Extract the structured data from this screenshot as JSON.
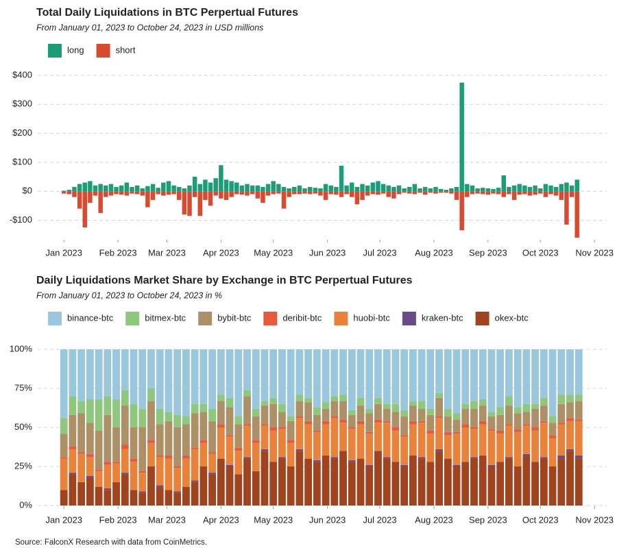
{
  "chart_data": [
    {
      "type": "bar",
      "title": "Total Daily Liquidations in BTC Perpertual Futures",
      "subtitle": "From January 01, 2023 to October 24, 2023 in USD millions",
      "x": [
        0,
        3,
        6,
        9,
        12,
        15,
        18,
        21,
        24,
        27,
        30,
        33,
        36,
        39,
        42,
        45,
        48,
        51,
        54,
        57,
        60,
        63,
        66,
        69,
        72,
        75,
        78,
        81,
        84,
        87,
        90,
        93,
        96,
        99,
        102,
        105,
        108,
        111,
        114,
        117,
        120,
        123,
        126,
        129,
        132,
        135,
        138,
        141,
        144,
        147,
        150,
        153,
        156,
        159,
        162,
        165,
        168,
        171,
        174,
        177,
        180,
        183,
        186,
        189,
        192,
        195,
        198,
        201,
        204,
        207,
        210,
        213,
        216,
        219,
        222,
        225,
        228,
        231,
        234,
        237,
        240,
        243,
        246,
        249,
        252,
        255,
        258,
        261,
        264,
        267,
        270,
        273,
        276,
        279,
        282,
        285,
        288,
        291,
        294
      ],
      "series": [
        {
          "name": "long",
          "color": "#1a9e77",
          "values": [
            2,
            5,
            15,
            25,
            30,
            35,
            20,
            25,
            20,
            25,
            15,
            20,
            30,
            15,
            20,
            10,
            18,
            25,
            12,
            30,
            35,
            20,
            15,
            10,
            20,
            50,
            25,
            40,
            30,
            45,
            90,
            40,
            35,
            30,
            20,
            25,
            20,
            20,
            15,
            25,
            35,
            25,
            15,
            10,
            15,
            20,
            10,
            15,
            12,
            10,
            25,
            20,
            15,
            88,
            20,
            30,
            15,
            25,
            20,
            30,
            35,
            25,
            20,
            15,
            20,
            10,
            15,
            25,
            10,
            15,
            10,
            15,
            8,
            5,
            10,
            15,
            375,
            25,
            20,
            10,
            12,
            10,
            8,
            12,
            55,
            15,
            20,
            25,
            20,
            15,
            20,
            10,
            25,
            20,
            15,
            25,
            30,
            20,
            40
          ]
        },
        {
          "name": "short",
          "color": "#d94a30",
          "values": [
            -8,
            -10,
            -20,
            -60,
            -125,
            -40,
            -15,
            -75,
            -20,
            -15,
            -10,
            -12,
            -15,
            -8,
            -10,
            -15,
            -55,
            -30,
            -10,
            -15,
            -12,
            -10,
            -30,
            -80,
            -85,
            -20,
            -85,
            -30,
            -50,
            -15,
            -25,
            -30,
            -20,
            -10,
            -12,
            -15,
            -10,
            -25,
            -40,
            -15,
            -10,
            -8,
            -60,
            -20,
            -10,
            -10,
            -8,
            -10,
            -8,
            -15,
            -30,
            -10,
            -12,
            -20,
            -10,
            -20,
            -45,
            -30,
            -15,
            -10,
            -12,
            -8,
            -20,
            -25,
            -10,
            -5,
            -8,
            -10,
            -5,
            -12,
            -5,
            -8,
            -5,
            -5,
            -8,
            -30,
            -135,
            -20,
            -10,
            -8,
            -10,
            -12,
            -8,
            -10,
            -20,
            -10,
            -30,
            -12,
            -10,
            -15,
            -12,
            -8,
            -20,
            -10,
            -15,
            -30,
            -115,
            -20,
            -160
          ]
        }
      ],
      "xlim": [
        -15,
        311
      ],
      "xticks": [
        {
          "value": 0,
          "label": "Jan 2023"
        },
        {
          "value": 31,
          "label": "Feb 2023"
        },
        {
          "value": 59,
          "label": "Mar 2023"
        },
        {
          "value": 90,
          "label": "Apr 2023"
        },
        {
          "value": 120,
          "label": "May 2023"
        },
        {
          "value": 151,
          "label": "Jun 2023"
        },
        {
          "value": 181,
          "label": "Jul 2023"
        },
        {
          "value": 212,
          "label": "Aug 2023"
        },
        {
          "value": 243,
          "label": "Sep 2023"
        },
        {
          "value": 273,
          "label": "Oct 2023"
        },
        {
          "value": 304,
          "label": "Nov 2023"
        }
      ],
      "ylim": [
        -165,
        400
      ],
      "yticks": [
        {
          "value": -100,
          "label": "-$100"
        },
        {
          "value": 0,
          "label": "$0"
        },
        {
          "value": 100,
          "label": "$100"
        },
        {
          "value": 200,
          "label": "$200"
        },
        {
          "value": 300,
          "label": "$300"
        },
        {
          "value": 400,
          "label": "$400"
        }
      ],
      "grid": true,
      "legend": "top-left"
    },
    {
      "type": "bar",
      "title": "Daily Liquidations Market Share by Exchange in BTC Perpertual Futures",
      "subtitle": "From January 01, 2023 to October 24, 2023 in %",
      "x": [
        0,
        5,
        10,
        15,
        20,
        25,
        30,
        35,
        40,
        45,
        50,
        55,
        60,
        65,
        70,
        75,
        80,
        85,
        90,
        95,
        100,
        105,
        110,
        115,
        120,
        125,
        130,
        135,
        140,
        145,
        150,
        155,
        160,
        165,
        170,
        175,
        180,
        185,
        190,
        195,
        200,
        205,
        210,
        215,
        220,
        225,
        230,
        235,
        240,
        245,
        250,
        255,
        260,
        265,
        270,
        275,
        280,
        285,
        290,
        295
      ],
      "series": [
        {
          "name": "binance-btc",
          "color": "#9ac6de",
          "values": [
            44,
            30,
            33,
            32,
            32,
            30,
            32,
            26,
            35,
            38,
            25,
            38,
            40,
            42,
            43,
            35,
            35,
            38,
            29,
            31,
            43,
            26,
            38,
            33,
            31,
            35,
            43,
            29,
            31,
            37,
            34,
            30,
            29,
            39,
            31,
            38,
            31,
            35,
            35,
            39,
            33,
            33,
            38,
            28,
            38,
            41,
            35,
            33,
            32,
            40,
            37,
            30,
            37,
            35,
            35,
            31,
            43,
            29,
            29,
            29
          ]
        },
        {
          "name": "bitmex-btc",
          "color": "#8ec77d",
          "values": [
            10,
            12,
            8,
            15,
            20,
            12,
            18,
            10,
            15,
            12,
            8,
            10,
            6,
            8,
            5,
            6,
            5,
            8,
            4,
            6,
            5,
            4,
            5,
            3,
            4,
            5,
            3,
            4,
            3,
            5,
            4,
            3,
            4,
            3,
            5,
            3,
            4,
            3,
            5,
            4,
            3,
            5,
            4,
            3,
            5,
            4,
            3,
            5,
            4,
            3,
            5,
            6,
            4,
            5,
            3,
            5,
            4,
            6,
            5,
            4
          ]
        },
        {
          "name": "bybit-btc",
          "color": "#ad9068",
          "values": [
            15,
            20,
            25,
            20,
            25,
            30,
            22,
            25,
            20,
            28,
            25,
            20,
            22,
            25,
            20,
            22,
            18,
            20,
            15,
            18,
            15,
            18,
            15,
            12,
            15,
            10,
            12,
            10,
            12,
            10,
            8,
            10,
            12,
            8,
            10,
            12,
            10,
            8,
            10,
            12,
            10,
            8,
            10,
            12,
            10,
            8,
            10,
            12,
            10,
            8,
            10,
            12,
            10,
            8,
            12,
            10,
            8,
            12,
            10,
            12
          ]
        },
        {
          "name": "deribit-btc",
          "color": "#e85a3d",
          "values": [
            1,
            2,
            1,
            2,
            1,
            2,
            1,
            3,
            2,
            1,
            2,
            1,
            2,
            1,
            2,
            1,
            2,
            1,
            2,
            1,
            2,
            1,
            2,
            1,
            2,
            1,
            2,
            1,
            2,
            1,
            2,
            1,
            2,
            1,
            2,
            1,
            2,
            1,
            2,
            1,
            2,
            1,
            2,
            1,
            2,
            1,
            2,
            1,
            2,
            1,
            2,
            1,
            2,
            1,
            2,
            1,
            2,
            1,
            2,
            1
          ]
        },
        {
          "name": "huobi-btc",
          "color": "#e9833c",
          "values": [
            20,
            15,
            18,
            12,
            10,
            15,
            12,
            15,
            18,
            12,
            15,
            18,
            20,
            15,
            18,
            20,
            15,
            12,
            20,
            18,
            15,
            20,
            18,
            15,
            20,
            18,
            15,
            20,
            22,
            18,
            20,
            25,
            18,
            20,
            22,
            20,
            18,
            22,
            20,
            18,
            20,
            22,
            18,
            20,
            15,
            20,
            22,
            18,
            20,
            22,
            18,
            20,
            22,
            18,
            20,
            22,
            18,
            20,
            18,
            22
          ]
        },
        {
          "name": "kraken-btc",
          "color": "#6a4a8a",
          "values": [
            0,
            1,
            0,
            1,
            0,
            1,
            0,
            1,
            0,
            1,
            0,
            1,
            0,
            1,
            0,
            1,
            0,
            1,
            0,
            1,
            0,
            1,
            0,
            1,
            0,
            1,
            0,
            1,
            0,
            1,
            0,
            1,
            0,
            1,
            0,
            1,
            0,
            1,
            0,
            1,
            0,
            1,
            0,
            1,
            0,
            1,
            0,
            1,
            0,
            1,
            0,
            1,
            0,
            1,
            0,
            1,
            0,
            2,
            1,
            2
          ]
        },
        {
          "name": "okex-btc",
          "color": "#a0431f",
          "values": [
            10,
            20,
            15,
            18,
            12,
            10,
            15,
            20,
            10,
            8,
            25,
            12,
            10,
            8,
            12,
            15,
            25,
            20,
            30,
            25,
            20,
            30,
            22,
            35,
            28,
            30,
            25,
            35,
            30,
            28,
            32,
            30,
            35,
            28,
            30,
            25,
            35,
            30,
            28,
            25,
            32,
            30,
            28,
            35,
            30,
            25,
            28,
            30,
            32,
            25,
            28,
            30,
            25,
            32,
            28,
            30,
            25,
            30,
            35,
            30
          ]
        }
      ],
      "xlim": [
        -15,
        311
      ],
      "xticks": [
        {
          "value": 0,
          "label": "Jan 2023"
        },
        {
          "value": 31,
          "label": "Feb 2023"
        },
        {
          "value": 59,
          "label": "Mar 2023"
        },
        {
          "value": 90,
          "label": "Apr 2023"
        },
        {
          "value": 120,
          "label": "May 2023"
        },
        {
          "value": 151,
          "label": "Jun 2023"
        },
        {
          "value": 181,
          "label": "Jul 2023"
        },
        {
          "value": 212,
          "label": "Aug 2023"
        },
        {
          "value": 243,
          "label": "Sep 2023"
        },
        {
          "value": 273,
          "label": "Oct 2023"
        },
        {
          "value": 304,
          "label": "Nov 2023"
        }
      ],
      "ylim": [
        0,
        100
      ],
      "yticks": [
        {
          "value": 0,
          "label": "0%"
        },
        {
          "value": 25,
          "label": "25%"
        },
        {
          "value": 50,
          "label": "50%"
        },
        {
          "value": 75,
          "label": "75%"
        },
        {
          "value": 100,
          "label": "100%"
        }
      ],
      "grid": true,
      "legend": "top-left"
    }
  ],
  "source": "Source: FalconX Research with data from CoinMetrics."
}
